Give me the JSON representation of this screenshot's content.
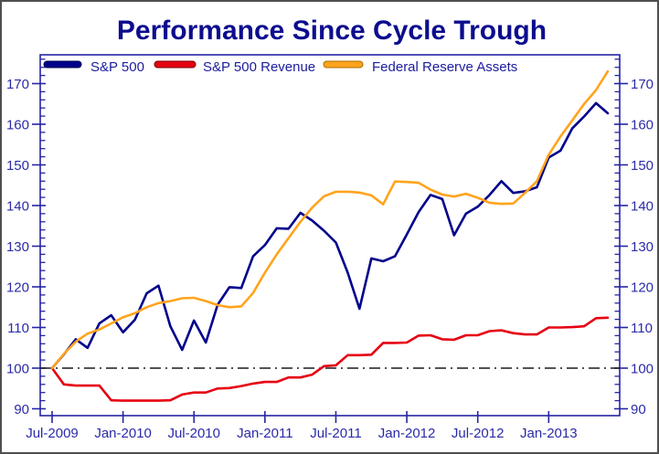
{
  "window": {
    "background": "#ffffff",
    "border_color": "#4f4f4f"
  },
  "colors": {
    "title": "#0c0c8f",
    "axis": "#2525a5",
    "axis_text": "#2a2aa8",
    "legend_text": "#1c1c9c",
    "reference_line": "#1a1a1a"
  },
  "chart_data": {
    "type": "line",
    "title": "Performance Since Cycle Trough",
    "x": [
      "Jul-2009",
      "Aug-2009",
      "Sep-2009",
      "Oct-2009",
      "Nov-2009",
      "Dec-2009",
      "Jan-2010",
      "Feb-2010",
      "Mar-2010",
      "Apr-2010",
      "May-2010",
      "Jun-2010",
      "Jul-2010",
      "Aug-2010",
      "Sep-2010",
      "Oct-2010",
      "Nov-2010",
      "Dec-2010",
      "Jan-2011",
      "Feb-2011",
      "Mar-2011",
      "Apr-2011",
      "May-2011",
      "Jun-2011",
      "Jul-2011",
      "Aug-2011",
      "Sep-2011",
      "Oct-2011",
      "Nov-2011",
      "Dec-2011",
      "Jan-2012",
      "Feb-2012",
      "Mar-2012",
      "Apr-2012",
      "May-2012",
      "Jun-2012",
      "Jul-2012",
      "Aug-2012",
      "Sep-2012",
      "Oct-2012",
      "Nov-2012",
      "Dec-2012",
      "Jan-2013",
      "Feb-2013",
      "Mar-2013",
      "Apr-2013",
      "May-2013",
      "Jun-2013"
    ],
    "x_axis_tick_labels": [
      "Jul-2009",
      "Jan-2010",
      "Jul-2010",
      "Jan-2011",
      "Jul-2011",
      "Jan-2012",
      "Jul-2012",
      "Jan-2013"
    ],
    "x_axis_tick_positions": [
      0,
      6,
      12,
      18,
      24,
      30,
      36,
      42
    ],
    "y_axis_ticks": [
      90,
      100,
      110,
      120,
      130,
      140,
      150,
      160,
      170
    ],
    "y_axis_minor_tick_step": 2,
    "ylim": [
      88,
      177
    ],
    "dual_y_axis": true,
    "grid": false,
    "legend_position": "top-left-inside-horizontal",
    "reference_line_y": 100,
    "reference_line_style": "dash-dot",
    "series": [
      {
        "name": "S&P 500",
        "color": "#00008B",
        "swatch_border": "#00004d",
        "values": [
          100,
          103.4,
          107.1,
          105.0,
          111.0,
          113.0,
          108.8,
          111.9,
          118.4,
          120.3,
          110.3,
          104.5,
          111.7,
          106.3,
          115.6,
          119.9,
          119.7,
          127.5,
          130.3,
          134.4,
          134.3,
          138.2,
          136.3,
          133.8,
          130.9,
          123.5,
          114.6,
          127.0,
          126.3,
          127.5,
          132.9,
          138.4,
          142.6,
          141.6,
          132.7,
          138.0,
          139.7,
          142.6,
          146.0,
          143.1,
          143.5,
          144.5,
          151.8,
          153.5,
          159.0,
          161.9,
          165.2,
          162.7
        ]
      },
      {
        "name": "S&P 500 Revenue",
        "color": "#E60012",
        "swatch_border": "#7a0000",
        "values": [
          100,
          96.0,
          95.7,
          95.7,
          95.7,
          92.1,
          92.0,
          92.0,
          92.0,
          92.0,
          92.1,
          93.5,
          94.0,
          94.0,
          95.0,
          95.1,
          95.6,
          96.2,
          96.6,
          96.6,
          97.7,
          97.7,
          98.4,
          100.5,
          100.7,
          103.2,
          103.2,
          103.3,
          106.2,
          106.2,
          106.3,
          108.0,
          108.1,
          107.1,
          107.0,
          108.1,
          108.1,
          109.1,
          109.3,
          108.6,
          108.3,
          108.3,
          110.0,
          110.0,
          110.1,
          110.3,
          112.3,
          112.4
        ]
      },
      {
        "name": "Federal Reserve Assets",
        "color": "#FFA41C",
        "swatch_border": "#a86e00",
        "values": [
          100,
          103.5,
          106.5,
          108.5,
          109.5,
          111.0,
          112.5,
          113.5,
          115.0,
          116.0,
          116.5,
          117.2,
          117.3,
          116.5,
          115.5,
          115.0,
          115.2,
          118.5,
          123.5,
          128.0,
          132.0,
          136.0,
          139.5,
          142.3,
          143.4,
          143.4,
          143.2,
          142.5,
          140.3,
          145.9,
          145.8,
          145.6,
          143.9,
          142.7,
          142.2,
          142.9,
          141.9,
          140.7,
          140.4,
          140.5,
          143.1,
          146.0,
          152.5,
          157.0,
          161.0,
          165.0,
          168.4,
          173.0
        ]
      }
    ]
  }
}
